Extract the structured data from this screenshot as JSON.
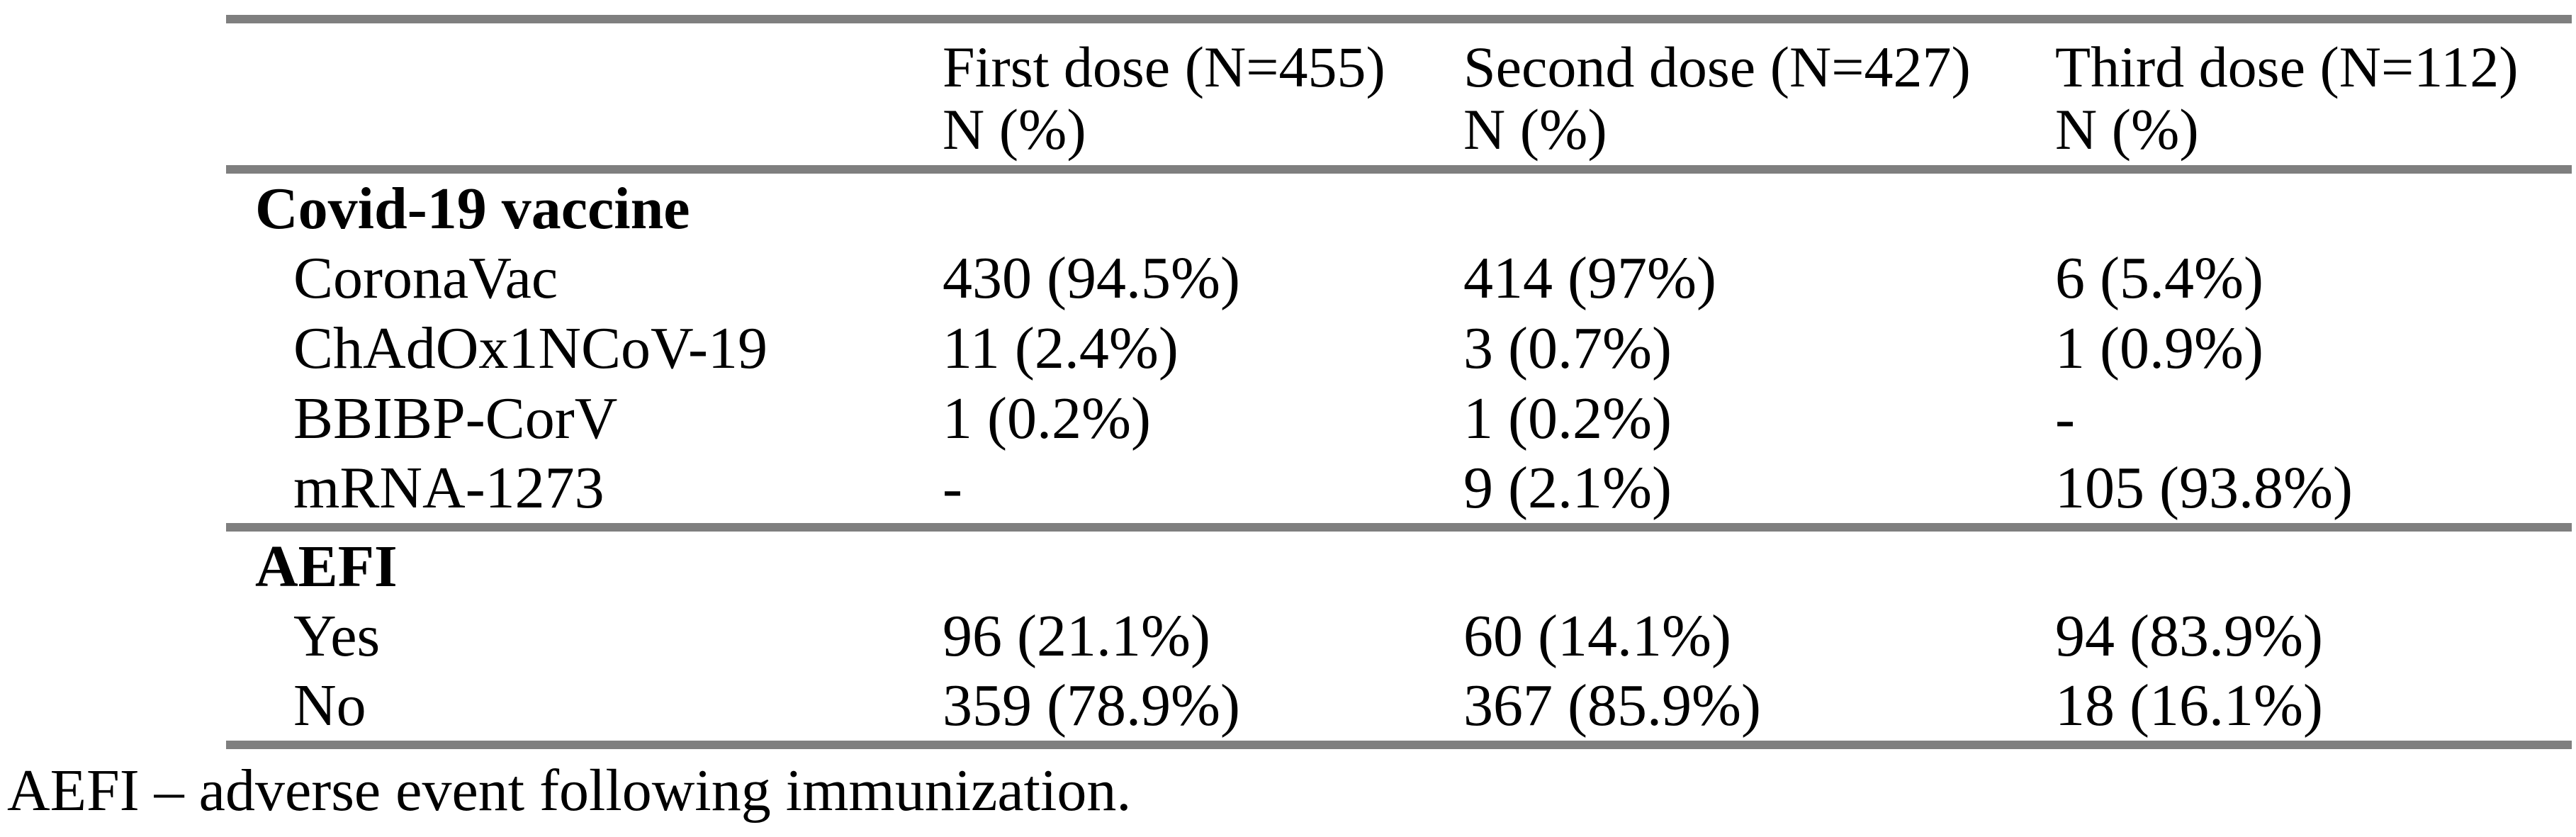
{
  "table": {
    "columns": [
      {
        "title": "First dose (N=455)",
        "subtitle": "N (%)"
      },
      {
        "title": "Second dose (N=427)",
        "subtitle": "N (%)"
      },
      {
        "title": "Third dose (N=112)",
        "subtitle": "N (%)"
      }
    ],
    "sections": [
      {
        "group": "Covid-19 vaccine",
        "rows": [
          {
            "label": "CoronaVac",
            "values": [
              "430 (94.5%)",
              "414 (97%)",
              "6 (5.4%)"
            ]
          },
          {
            "label": "ChAdOx1NCoV-19",
            "values": [
              "11 (2.4%)",
              "3 (0.7%)",
              "1 (0.9%)"
            ]
          },
          {
            "label": "BBIBP-CorV",
            "values": [
              "1 (0.2%)",
              "1 (0.2%)",
              "-"
            ]
          },
          {
            "label": "mRNA-1273",
            "values": [
              "-",
              "9 (2.1%)",
              "105 (93.8%)"
            ]
          }
        ]
      },
      {
        "group": "AEFI",
        "rows": [
          {
            "label": "Yes",
            "values": [
              "96 (21.1%)",
              "60 (14.1%)",
              "94 (83.9%)"
            ]
          },
          {
            "label": "No",
            "values": [
              "359 (78.9%)",
              "367 (85.9%)",
              "18 (16.1%)"
            ]
          }
        ]
      }
    ]
  },
  "footnote": "AEFI – adverse event following immunization.",
  "colors": {
    "rule": "#7f7f7f",
    "text": "#000000",
    "background": "#ffffff"
  }
}
